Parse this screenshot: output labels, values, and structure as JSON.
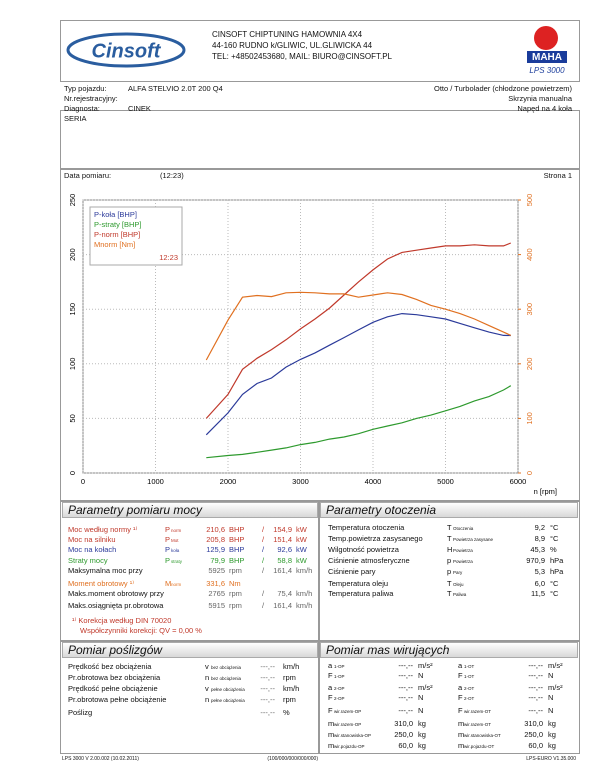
{
  "header": {
    "company": "CINSOFT CHIPTUNING HAMOWNIA 4X4",
    "address": "44-160 RUDNO k/GLIWIC, UL.GLIWICKA 44",
    "contact": "TEL: +48502453680, MAIL: BIURO@CINSOFT.PL",
    "logo": "Cinsoft",
    "brand": "MAHA",
    "model": "LPS 3000"
  },
  "vehicle": {
    "rows": [
      [
        "Typ pojazdu:",
        "ALFA STELVIO 2.0T 200 Q4"
      ],
      [
        "Nr.rejestracyjny:"
      ],
      [
        "Diagnosta:",
        "CINEK"
      ]
    ],
    "specs": [
      "Otto / Turbolader (chłodzone powietrzem)",
      "Skrzynia manualna",
      "Napęd na 4 koła"
    ],
    "series_label": "SERIA",
    "date_label": "Data pomiaru:",
    "time": "(12:23)",
    "page": "Strona 1"
  },
  "chart_data": {
    "type": "line",
    "x_label": "n [rpm]",
    "annotation": "12:23",
    "grid": true,
    "x": [
      1700,
      2000,
      2200,
      2400,
      2600,
      2800,
      3000,
      3200,
      3400,
      3600,
      3800,
      4000,
      4200,
      4400,
      4600,
      4800,
      5000,
      5200,
      5400,
      5600,
      5800,
      5900
    ],
    "xlim": [
      0,
      6000
    ],
    "xticks": [
      0,
      1000,
      2000,
      3000,
      4000,
      5000,
      6000
    ],
    "ylim": [
      0,
      250
    ],
    "yticks": [
      0,
      50,
      100,
      150,
      200,
      250
    ],
    "y2lim": [
      0,
      500
    ],
    "y2ticks": [
      0,
      100,
      200,
      300,
      400,
      500
    ],
    "series": [
      {
        "name": "P-koła [BHP]",
        "color": "#2b3a9a",
        "values": [
          35,
          55,
          72,
          82,
          87,
          97,
          104,
          110,
          117,
          124,
          131,
          138,
          143,
          146,
          145,
          143,
          141,
          137,
          133,
          129,
          126,
          125.9
        ]
      },
      {
        "name": "P-straty [BHP]",
        "color": "#2e9a2e",
        "values": [
          14,
          16,
          17,
          19,
          21,
          23,
          26,
          28,
          31,
          33,
          36,
          40,
          43,
          46,
          50,
          53,
          57,
          61,
          66,
          70,
          76,
          79.9
        ]
      },
      {
        "name": "P-norm [BHP]",
        "color": "#c0392b",
        "values": [
          50,
          72,
          95,
          105,
          113,
          122,
          132,
          141,
          151,
          163,
          175,
          186,
          196,
          202,
          204,
          206,
          208,
          208,
          209,
          208,
          208,
          210.6
        ]
      },
      {
        "name": "Mnorm [Nm]",
        "color": "#e07020",
        "axis": "y2",
        "values": [
          207,
          280,
          322,
          325,
          323,
          330,
          331,
          330,
          328,
          328,
          322,
          326,
          330,
          327,
          318,
          307,
          300,
          292,
          282,
          270,
          258,
          252
        ]
      }
    ]
  },
  "power": {
    "title": "Parametry pomiaru mocy",
    "rows": [
      {
        "label": "Moc według normy ¹⁾",
        "sym": "P",
        "sub": "norm",
        "v1": "210,6",
        "u1": "BHP",
        "sep": "/",
        "v2": "154,9",
        "u2": "kW",
        "color": "#c0392b"
      },
      {
        "label": "Moc na silniku",
        "sym": "P",
        "sub": "Mot",
        "v1": "205,8",
        "u1": "BHP",
        "sep": "/",
        "v2": "151,4",
        "u2": "kW",
        "color": "#c0392b"
      },
      {
        "label": "Moc na kołach",
        "sym": "P",
        "sub": "koła",
        "v1": "125,9",
        "u1": "BHP",
        "sep": "/",
        "v2": "92,6",
        "u2": "kW",
        "color": "#2b3a9a"
      },
      {
        "label": "Straty mocy",
        "sym": "P",
        "sub": "straty",
        "v1": "79,9",
        "u1": "BHP",
        "sep": "/",
        "v2": "58,8",
        "u2": "kW",
        "color": "#2e9a2e"
      },
      {
        "label": "Maksymalna moc przy",
        "v1": "5925",
        "u1": "rpm",
        "sep": "/",
        "v2": "161,4",
        "u2": "km/h"
      },
      {
        "label": "Moment obrotowy ¹⁾",
        "sym": "M",
        "sub": "norm",
        "v1": "331,6",
        "u1": "Nm",
        "color": "#e07020"
      },
      {
        "label": "Maks.moment obrotowy przy",
        "v1": "2765",
        "u1": "rpm",
        "sep": "/",
        "v2": "75,4",
        "u2": "km/h"
      },
      {
        "label": "Maks.osiągnięta pr.obrotowa",
        "v1": "5915",
        "u1": "rpm",
        "sep": "/",
        "v2": "161,4",
        "u2": "km/h"
      }
    ],
    "notes": [
      "¹⁾ Korekcja według DIN 70020",
      "Współczynniki korekcji: QV = 0,00 %"
    ]
  },
  "environment": {
    "title": "Parametry otoczenia",
    "rows": [
      {
        "label": "Temperatura otoczenia",
        "sym": "T",
        "sub": "Otoczenia",
        "v": "9,2",
        "u": "°C"
      },
      {
        "label": "Temp.powietrza zasysanego",
        "sym": "T",
        "sub": "Powietrza zasysane",
        "v": "8,9",
        "u": "°C"
      },
      {
        "label": "Wilgotność powietrza",
        "sym": "H",
        "sub": "Powietrza",
        "v": "45,3",
        "u": "%"
      },
      {
        "label": "Ciśnienie atmosferyczne",
        "sym": "p",
        "sub": "Powietrza",
        "v": "970,9",
        "u": "hPa"
      },
      {
        "label": "Ciśnienie pary",
        "sym": "p",
        "sub": "Pary",
        "v": "5,3",
        "u": "hPa"
      },
      {
        "label": "Temperatura oleju",
        "sym": "T",
        "sub": "Oleju",
        "v": "6,0",
        "u": "°C"
      },
      {
        "label": "Temperatura paliwa",
        "sym": "T",
        "sub": "Paliwa",
        "v": "11,5",
        "u": "°C"
      }
    ]
  },
  "slip": {
    "title": "Pomiar poślizgów",
    "rows": [
      {
        "label": "Prędkość bez obciążenia",
        "sym": "v",
        "sub": "bez obciążenia",
        "v": "---,--",
        "u": "km/h"
      },
      {
        "label": "Pr.obrotowa bez obciążenia",
        "sym": "n",
        "sub": "bez obciążenia",
        "v": "---,--",
        "u": "rpm"
      },
      {
        "label": "Prędkość pełne obciążenie",
        "sym": "v",
        "sub": "pełne obciążenia",
        "v": "---,--",
        "u": "km/h"
      },
      {
        "label": "Pr.obrotowa pełne obciążenie",
        "sym": "n",
        "sub": "pełne obciążenia",
        "v": "---,--",
        "u": "rpm"
      },
      {
        "label": "Poślizg",
        "v": "---,--",
        "u": "%"
      }
    ]
  },
  "masses": {
    "title": "Pomiar mas wirujących",
    "left": [
      {
        "sym": "a",
        "sub": "1-OP",
        "v": "---,--",
        "u": "m/s²"
      },
      {
        "sym": "F",
        "sub": "1-OP",
        "v": "---,--",
        "u": "N"
      },
      {
        "sym": "a",
        "sub": "2-OP",
        "v": "---,--",
        "u": "m/s²"
      },
      {
        "sym": "F",
        "sub": "2-OP",
        "v": "---,--",
        "u": "N"
      },
      {
        "sym": "F",
        "sub": "wir.razem-OP",
        "v": "---,--",
        "u": "N"
      },
      {
        "sym": "m",
        "sub": "wir.razem-OP",
        "v": "310,0",
        "u": "kg"
      },
      {
        "sym": "m",
        "sub": "wir.stanowiska-OP",
        "v": "250,0",
        "u": "kg"
      },
      {
        "sym": "m",
        "sub": "wir.pojazdu-OP",
        "v": "60,0",
        "u": "kg"
      }
    ],
    "right": [
      {
        "sym": "a",
        "sub": "1-OT",
        "v": "---,--",
        "u": "m/s²"
      },
      {
        "sym": "F",
        "sub": "1-OT",
        "v": "---,--",
        "u": "N"
      },
      {
        "sym": "a",
        "sub": "2-OT",
        "v": "---,--",
        "u": "m/s²"
      },
      {
        "sym": "F",
        "sub": "2-OT",
        "v": "---,--",
        "u": "N"
      },
      {
        "sym": "F",
        "sub": "wir.razem-OT",
        "v": "---,--",
        "u": "N"
      },
      {
        "sym": "m",
        "sub": "wir.razem-OT",
        "v": "310,0",
        "u": "kg"
      },
      {
        "sym": "m",
        "sub": "wir.stanowiska-OT",
        "v": "250,0",
        "u": "kg"
      },
      {
        "sym": "m",
        "sub": "wir.pojazdu-OT",
        "v": "60,0",
        "u": "kg"
      }
    ]
  },
  "footer": {
    "left": "LPS 3000 V 2.00.002 (10.02.2011)",
    "center": "(100/000/000/000/000)",
    "right": "LPS-EURO V1.35.000"
  }
}
